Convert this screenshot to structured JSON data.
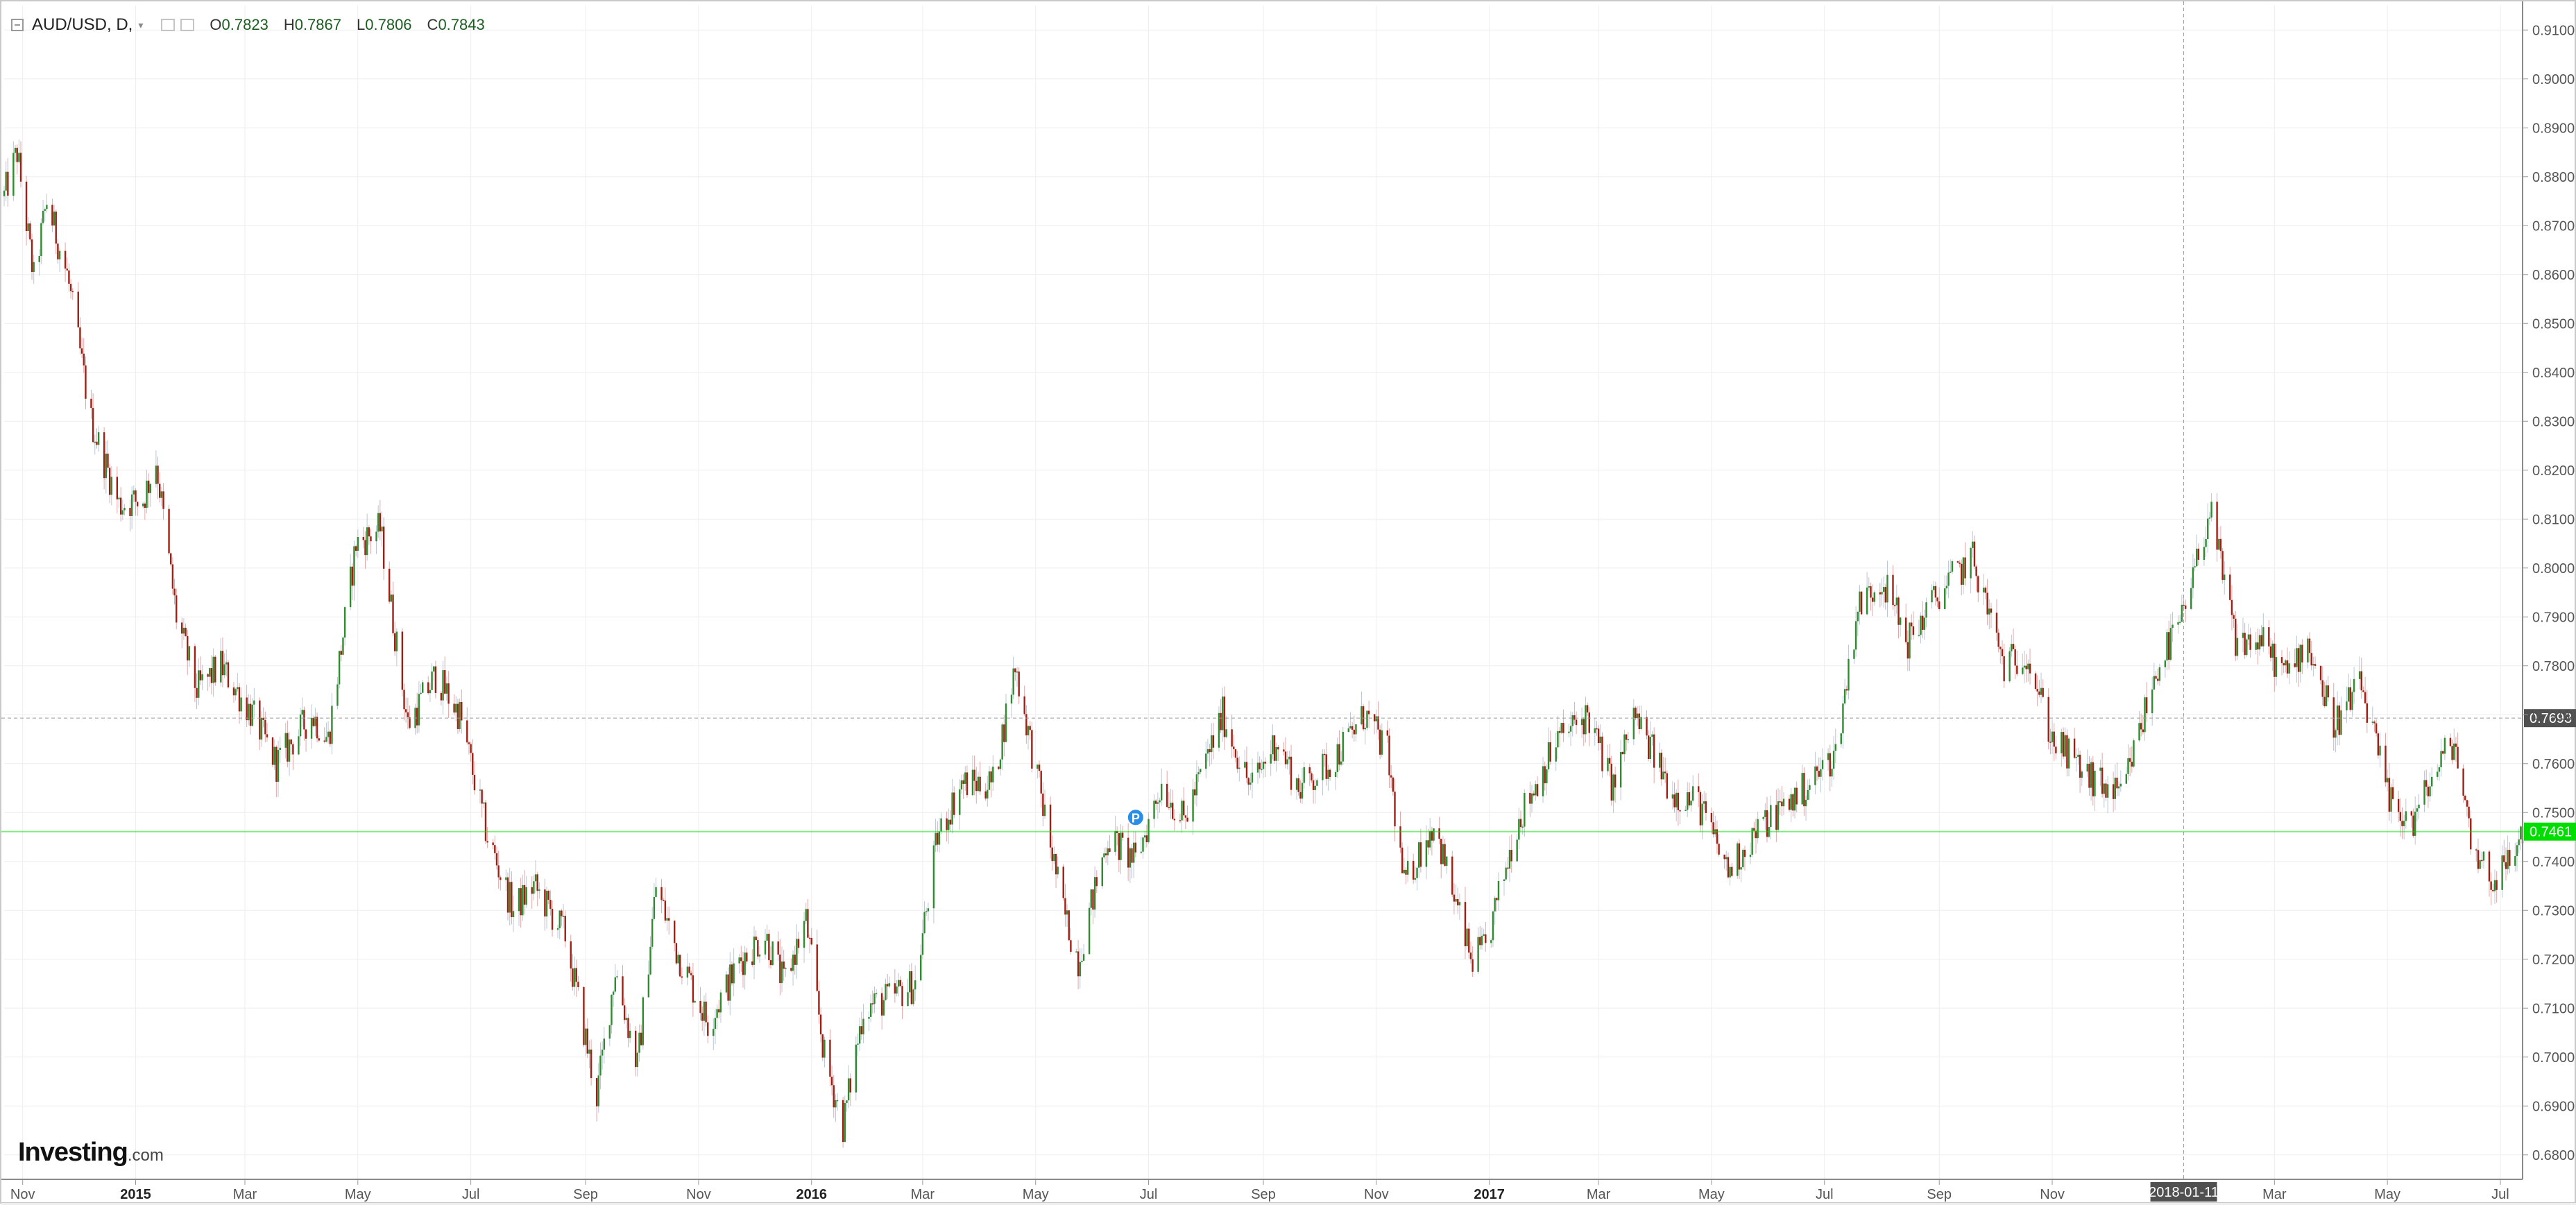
{
  "legend": {
    "symbol": "AUD/USD, D,",
    "open_label": "O",
    "open": "0.7823",
    "high_label": "H",
    "high": "0.7867",
    "low_label": "L",
    "low": "0.7806",
    "close_label": "C",
    "close": "0.7843",
    "icons": [
      "collapse-icon",
      "caret-down-icon",
      "settings-icon",
      "close-icon"
    ]
  },
  "logo": {
    "text": "Investing",
    "suffix": ".com"
  },
  "colors": {
    "up": "#2e8b2e",
    "down": "#a01f12",
    "wick_up": "#b9c7d6",
    "wick_down": "#e3a6a6",
    "current_price": "#00dd00",
    "crosshair_label": "#505050",
    "grid": "#eeeeee"
  },
  "chart_data": {
    "type": "candlestick",
    "title": "",
    "xlabel": "",
    "ylabel": "",
    "ylim": [
      0.675,
      0.915
    ],
    "y_ticks": [
      "0.9100",
      "0.9000",
      "0.8900",
      "0.8800",
      "0.8700",
      "0.8600",
      "0.8500",
      "0.8400",
      "0.8300",
      "0.8200",
      "0.8100",
      "0.8000",
      "0.7900",
      "0.7800",
      "0.7700",
      "0.7600",
      "0.7500",
      "0.7400",
      "0.7300",
      "0.7200",
      "0.7100",
      "0.7000",
      "0.6900",
      "0.6800"
    ],
    "x_ticks": [
      {
        "label": "Nov",
        "date": "2014-11-01"
      },
      {
        "label": "2015",
        "date": "2015-01-01",
        "bold": true
      },
      {
        "label": "Mar",
        "date": "2015-03-01"
      },
      {
        "label": "May",
        "date": "2015-05-01"
      },
      {
        "label": "Jul",
        "date": "2015-07-01"
      },
      {
        "label": "Sep",
        "date": "2015-09-01"
      },
      {
        "label": "Nov",
        "date": "2015-11-01"
      },
      {
        "label": "2016",
        "date": "2016-01-01",
        "bold": true
      },
      {
        "label": "Mar",
        "date": "2016-03-01"
      },
      {
        "label": "May",
        "date": "2016-05-01"
      },
      {
        "label": "Jul",
        "date": "2016-07-01"
      },
      {
        "label": "Sep",
        "date": "2016-09-01"
      },
      {
        "label": "Nov",
        "date": "2016-11-01"
      },
      {
        "label": "2017",
        "date": "2017-01-01",
        "bold": true
      },
      {
        "label": "Mar",
        "date": "2017-03-01"
      },
      {
        "label": "May",
        "date": "2017-05-01"
      },
      {
        "label": "Jul",
        "date": "2017-07-01"
      },
      {
        "label": "Sep",
        "date": "2017-09-01"
      },
      {
        "label": "Nov",
        "date": "2017-11-01"
      },
      {
        "label": "Mar",
        "date": "2018-03-01"
      },
      {
        "label": "May",
        "date": "2018-05-01"
      },
      {
        "label": "Jul",
        "date": "2018-07-01"
      }
    ],
    "x_range": [
      "2014-10-22",
      "2018-07-13"
    ],
    "crosshair": {
      "date": "2018-01-11",
      "date_label": "2018-01-11",
      "price": 0.7693,
      "price_label": "0.7693"
    },
    "current_price": {
      "value": 0.7461,
      "label": "0.7461"
    },
    "marker": {
      "date": "2016-06-24",
      "price": 0.749,
      "text": "P"
    },
    "grid": true,
    "anchors": [
      [
        "2014-10-22",
        0.876
      ],
      [
        "2014-10-29",
        0.885
      ],
      [
        "2014-11-07",
        0.859
      ],
      [
        "2014-11-14",
        0.875
      ],
      [
        "2014-11-25",
        0.86
      ],
      [
        "2014-12-08",
        0.83
      ],
      [
        "2014-12-23",
        0.813
      ],
      [
        "2015-01-05",
        0.814
      ],
      [
        "2015-01-12",
        0.822
      ],
      [
        "2015-01-23",
        0.79
      ],
      [
        "2015-02-03",
        0.775
      ],
      [
        "2015-02-16",
        0.78
      ],
      [
        "2015-03-05",
        0.77
      ],
      [
        "2015-03-18",
        0.76
      ],
      [
        "2015-04-06",
        0.77
      ],
      [
        "2015-04-15",
        0.765
      ],
      [
        "2015-04-30",
        0.805
      ],
      [
        "2015-05-13",
        0.808
      ],
      [
        "2015-05-28",
        0.768
      ],
      [
        "2015-06-12",
        0.778
      ],
      [
        "2015-06-25",
        0.77
      ],
      [
        "2015-07-10",
        0.745
      ],
      [
        "2015-07-24",
        0.73
      ],
      [
        "2015-08-04",
        0.735
      ],
      [
        "2015-08-21",
        0.725
      ],
      [
        "2015-09-07",
        0.692
      ],
      [
        "2015-09-17",
        0.718
      ],
      [
        "2015-09-29",
        0.698
      ],
      [
        "2015-10-09",
        0.735
      ],
      [
        "2015-10-20",
        0.722
      ],
      [
        "2015-11-06",
        0.707
      ],
      [
        "2015-11-24",
        0.72
      ],
      [
        "2015-12-07",
        0.725
      ],
      [
        "2015-12-17",
        0.715
      ],
      [
        "2015-12-29",
        0.728
      ],
      [
        "2016-01-08",
        0.7
      ],
      [
        "2016-01-18",
        0.686
      ],
      [
        "2016-01-29",
        0.71
      ],
      [
        "2016-02-12",
        0.712
      ],
      [
        "2016-02-26",
        0.715
      ],
      [
        "2016-03-09",
        0.745
      ],
      [
        "2016-03-22",
        0.756
      ],
      [
        "2016-04-08",
        0.756
      ],
      [
        "2016-04-20",
        0.78
      ],
      [
        "2016-05-03",
        0.755
      ],
      [
        "2016-05-16",
        0.73
      ],
      [
        "2016-05-24",
        0.72
      ],
      [
        "2016-06-09",
        0.745
      ],
      [
        "2016-06-24",
        0.74
      ],
      [
        "2016-07-08",
        0.756
      ],
      [
        "2016-07-20",
        0.748
      ],
      [
        "2016-08-10",
        0.77
      ],
      [
        "2016-08-25",
        0.755
      ],
      [
        "2016-09-08",
        0.765
      ],
      [
        "2016-09-20",
        0.755
      ],
      [
        "2016-10-07",
        0.76
      ],
      [
        "2016-10-26",
        0.77
      ],
      [
        "2016-11-07",
        0.762
      ],
      [
        "2016-11-16",
        0.735
      ],
      [
        "2016-12-02",
        0.748
      ],
      [
        "2016-12-22",
        0.72
      ],
      [
        "2016-12-30",
        0.722
      ],
      [
        "2017-01-16",
        0.748
      ],
      [
        "2017-02-07",
        0.765
      ],
      [
        "2017-02-23",
        0.77
      ],
      [
        "2017-03-09",
        0.755
      ],
      [
        "2017-03-20",
        0.77
      ],
      [
        "2017-04-10",
        0.754
      ],
      [
        "2017-04-24",
        0.752
      ],
      [
        "2017-05-10",
        0.738
      ],
      [
        "2017-05-23",
        0.745
      ],
      [
        "2017-06-05",
        0.75
      ],
      [
        "2017-06-21",
        0.755
      ],
      [
        "2017-07-07",
        0.762
      ],
      [
        "2017-07-19",
        0.792
      ],
      [
        "2017-08-01",
        0.798
      ],
      [
        "2017-08-15",
        0.785
      ],
      [
        "2017-09-01",
        0.795
      ],
      [
        "2017-09-19",
        0.802
      ],
      [
        "2017-10-06",
        0.78
      ],
      [
        "2017-10-18",
        0.783
      ],
      [
        "2017-11-01",
        0.765
      ],
      [
        "2017-11-21",
        0.757
      ],
      [
        "2017-12-08",
        0.753
      ],
      [
        "2017-12-28",
        0.78
      ],
      [
        "2018-01-11",
        0.79
      ],
      [
        "2018-01-25",
        0.812
      ],
      [
        "2018-02-08",
        0.785
      ],
      [
        "2018-02-22",
        0.785
      ],
      [
        "2018-03-07",
        0.778
      ],
      [
        "2018-03-19",
        0.785
      ],
      [
        "2018-04-02",
        0.768
      ],
      [
        "2018-04-17",
        0.776
      ],
      [
        "2018-05-02",
        0.752
      ],
      [
        "2018-05-15",
        0.748
      ],
      [
        "2018-05-25",
        0.757
      ],
      [
        "2018-06-06",
        0.765
      ],
      [
        "2018-06-15",
        0.745
      ],
      [
        "2018-06-26",
        0.736
      ],
      [
        "2018-07-06",
        0.74
      ],
      [
        "2018-07-13",
        0.7461
      ]
    ]
  }
}
